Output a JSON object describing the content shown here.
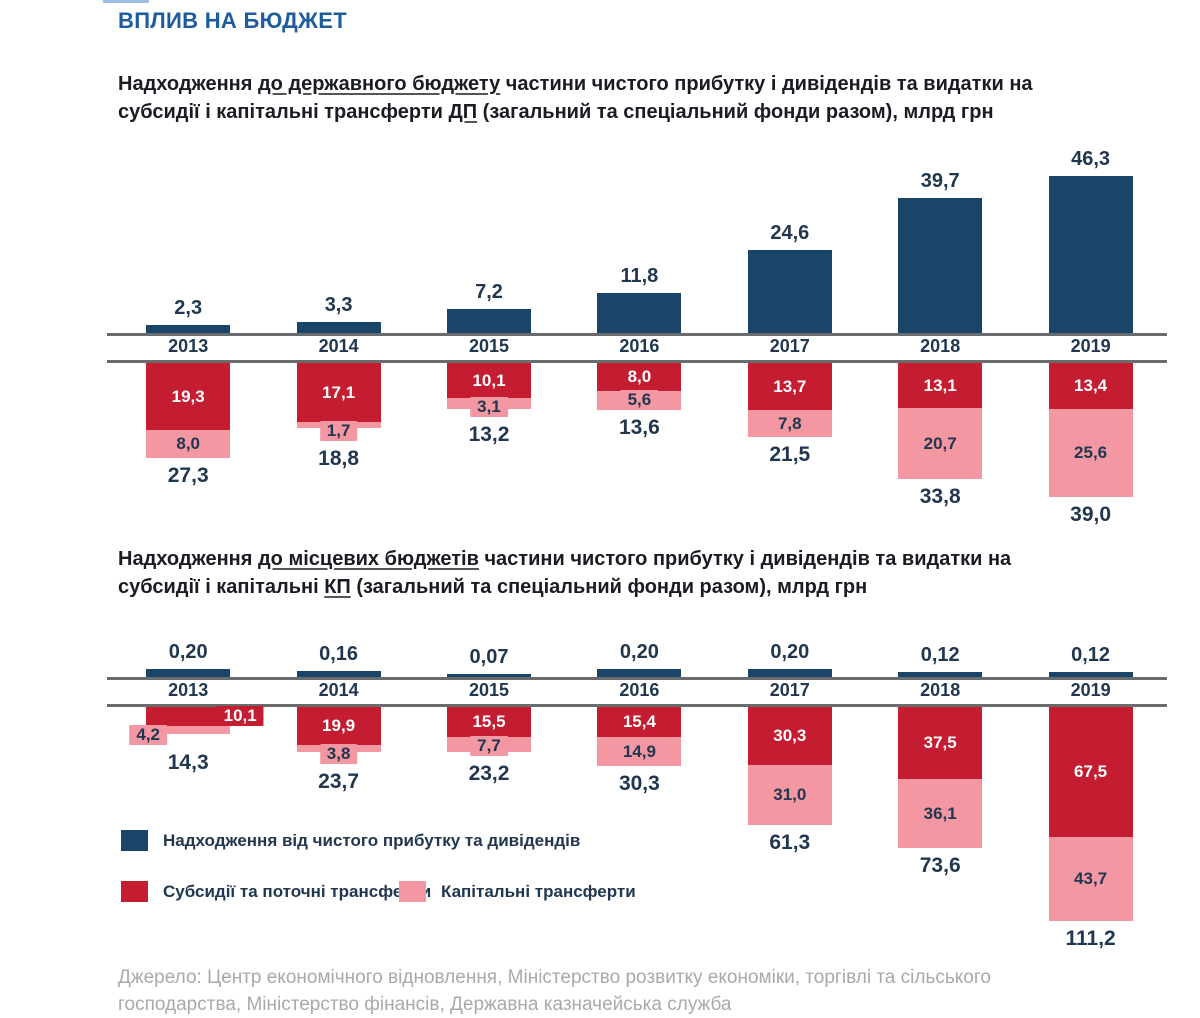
{
  "page": {
    "title": "ВПЛИВ НА БЮДЖЕТ",
    "source": "Джерело: Центр економічного відновлення, Міністерство розвитку економіки, торгівлі та сільського господарства, Міністерство фінансів, Державна казначейська служба"
  },
  "colors": {
    "navy": "#1a4568",
    "red": "#c41c30",
    "pink": "#f397a2",
    "axis_gray": "#6a6b6d",
    "chart_text": "#21374f",
    "title_blue": "#1e5c9e",
    "subtitle_dark": "#191c22",
    "source_gray": "#a7a9ac",
    "top_accent": "#9cc0e4",
    "red_label_text": "#ffffff"
  },
  "legend": {
    "position": "bottom-left",
    "items": [
      {
        "label": "Надходження від чистого прибутку та дивідендів",
        "color": "#1a4568"
      },
      {
        "label": "Субсидії та поточні трансферти",
        "color": "#c41c30"
      },
      {
        "label": "Капітальні трансферти",
        "color": "#f397a2"
      }
    ]
  },
  "chart_data": [
    {
      "type": "bar",
      "subtype": "diverging-stacked",
      "unit": "млрд грн",
      "grid": false,
      "title_runs": [
        {
          "t": "Надходження "
        },
        {
          "t": "до державного бюджету",
          "u": true
        },
        {
          "t": " частини чистого прибутку і дивідендів та видатки на"
        },
        {
          "br": true
        },
        {
          "t": "субсидії і капітальні трансферти "
        },
        {
          "t": "ДП",
          "u": true
        },
        {
          "t": " (загальний та спеціальний фонди разом), млрд грн"
        }
      ],
      "categories": [
        "2013",
        "2014",
        "2015",
        "2016",
        "2017",
        "2018",
        "2019"
      ],
      "series": [
        {
          "name": "Надходження від чистого прибутку та дивідендів",
          "direction": "up",
          "color": "#1a4568",
          "values": [
            2.3,
            3.3,
            7.2,
            11.8,
            24.6,
            39.7,
            46.3
          ],
          "labels": [
            "2,3",
            "3,3",
            "7,2",
            "11,8",
            "24,6",
            "39,7",
            "46,3"
          ]
        },
        {
          "name": "Субсидії та поточні трансферти",
          "direction": "down",
          "color": "#c41c30",
          "label_text_color": "#ffffff",
          "values": [
            19.3,
            17.1,
            10.1,
            8.0,
            13.7,
            13.1,
            13.4
          ],
          "labels": [
            "19,3",
            "17,1",
            "10,1",
            "8,0",
            "13,7",
            "13,1",
            "13,4"
          ]
        },
        {
          "name": "Капітальні трансферти",
          "direction": "down",
          "color": "#f397a2",
          "label_text_color": "#21374f",
          "values": [
            8.0,
            1.7,
            3.1,
            5.6,
            7.8,
            20.7,
            25.6
          ],
          "labels": [
            "8,0",
            "1,7",
            "3,1",
            "5,6",
            "7,8",
            "20,7",
            "25,6"
          ]
        }
      ],
      "totals_down": {
        "values": [
          27.3,
          18.8,
          13.2,
          13.6,
          21.5,
          33.8,
          39.0
        ],
        "labels": [
          "27,3",
          "18,8",
          "13,2",
          "13,6",
          "21,5",
          "33,8",
          "39,0"
        ]
      }
    },
    {
      "type": "bar",
      "subtype": "diverging-stacked",
      "unit": "млрд грн",
      "grid": false,
      "title_runs": [
        {
          "t": "Надходження "
        },
        {
          "t": "до місцевих бюджетів",
          "u": true
        },
        {
          "t": " частини чистого прибутку і дивідендів та видатки на"
        },
        {
          "br": true
        },
        {
          "t": "субсидії і капітальні "
        },
        {
          "t": "КП",
          "u": true
        },
        {
          "t": " (загальний та спеціальний фонди разом), млрд грн"
        }
      ],
      "categories": [
        "2013",
        "2014",
        "2015",
        "2016",
        "2017",
        "2018",
        "2019"
      ],
      "series": [
        {
          "name": "Надходження від чистого прибутку та дивідендів",
          "direction": "up",
          "color": "#1a4568",
          "values": [
            0.2,
            0.16,
            0.07,
            0.2,
            0.2,
            0.12,
            0.12
          ],
          "labels": [
            "0,20",
            "0,16",
            "0,07",
            "0,20",
            "0,20",
            "0,12",
            "0,12"
          ]
        },
        {
          "name": "Субсидії та поточні трансферти",
          "direction": "down",
          "color": "#c41c30",
          "label_text_color": "#ffffff",
          "values": [
            10.1,
            19.9,
            15.5,
            15.4,
            30.3,
            37.5,
            67.5
          ],
          "labels": [
            "10,1",
            "19,9",
            "15,5",
            "15,4",
            "30,3",
            "37,5",
            "67,5"
          ],
          "label_align": [
            "right",
            "center",
            "center",
            "center",
            "center",
            "center",
            "center"
          ]
        },
        {
          "name": "Капітальні трансферти",
          "direction": "down",
          "color": "#f397a2",
          "label_text_color": "#21374f",
          "values": [
            4.2,
            3.8,
            7.7,
            14.9,
            31.0,
            36.1,
            43.7
          ],
          "labels": [
            "4,2",
            "3,8",
            "7,7",
            "14,9",
            "31,0",
            "36,1",
            "43,7"
          ],
          "label_align": [
            "left",
            "center",
            "center",
            "center",
            "center",
            "center",
            "center"
          ]
        }
      ],
      "totals_down": {
        "values": [
          14.3,
          23.7,
          23.2,
          30.3,
          61.3,
          73.6,
          111.2
        ],
        "labels": [
          "14,3",
          "23,7",
          "23,2",
          "30,3",
          "61,3",
          "73,6",
          "111,2"
        ]
      }
    }
  ]
}
